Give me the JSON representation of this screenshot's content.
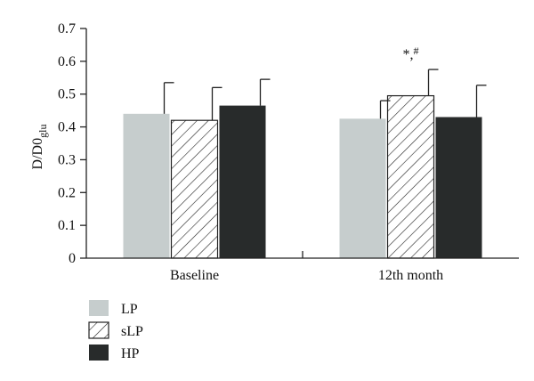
{
  "chart_data": {
    "type": "bar",
    "title": "",
    "xlabel": "",
    "ylabel": "D/D0",
    "ylabel_sub": "glu",
    "ylim": [
      0,
      0.7
    ],
    "yticks": [
      "0",
      "0.1",
      "0.2",
      "0.3",
      "0.4",
      "0.5",
      "0.6",
      "0.7"
    ],
    "ytick_values": [
      0,
      0.1,
      0.2,
      0.3,
      0.4,
      0.5,
      0.6,
      0.7
    ],
    "categories": [
      "Baseline",
      "12th month"
    ],
    "series": [
      {
        "name": "LP",
        "values": [
          0.44,
          0.425
        ],
        "errors": [
          0.095,
          0.055
        ],
        "color": "#c6cdcd",
        "pattern": "solid"
      },
      {
        "name": "sLP",
        "values": [
          0.42,
          0.495
        ],
        "errors": [
          0.1,
          0.08
        ],
        "color": "#ffffff",
        "pattern": "hatch"
      },
      {
        "name": "HP",
        "values": [
          0.465,
          0.43
        ],
        "errors": [
          0.08,
          0.097
        ],
        "color": "#282b2b",
        "pattern": "solid"
      }
    ],
    "annotations": [
      {
        "text": "*,",
        "superscript": "#",
        "category": "12th month",
        "series": "sLP"
      }
    ],
    "grid": false,
    "legend_position": "bottom-left"
  }
}
